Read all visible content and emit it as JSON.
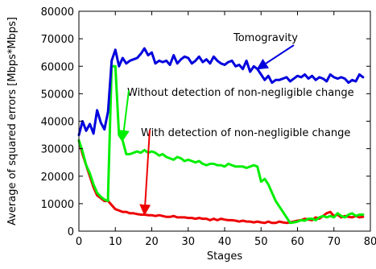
{
  "chart_data": {
    "type": "line",
    "xlabel": "Stages",
    "ylabel": "Average of squared errors [Mbps*Mbps]",
    "xlim": [
      0,
      80
    ],
    "ylim": [
      0,
      80000
    ],
    "xticks": [
      0,
      10,
      20,
      30,
      40,
      50,
      60,
      70,
      80
    ],
    "yticks": [
      0,
      10000,
      20000,
      30000,
      40000,
      50000,
      60000,
      70000,
      80000
    ],
    "grid": false,
    "legend": "none",
    "annotations": [
      {
        "text": "Tomogravity",
        "series": "tomogravity",
        "arrow_to": [
          49,
          59000
        ]
      },
      {
        "text": "Without detection of non-negligible change",
        "series": "without",
        "arrow_to": [
          12,
          33000
        ]
      },
      {
        "text": "With detection of non-negligible change",
        "series": "with",
        "arrow_to": [
          18,
          6000
        ]
      }
    ],
    "series": [
      {
        "key": "tomogravity",
        "color": "#0000dd",
        "x": [
          0,
          1,
          2,
          3,
          4,
          5,
          6,
          7,
          8,
          9,
          10,
          11,
          12,
          13,
          14,
          15,
          16,
          17,
          18,
          19,
          20,
          21,
          22,
          23,
          24,
          25,
          26,
          27,
          28,
          29,
          30,
          31,
          32,
          33,
          34,
          35,
          36,
          37,
          38,
          39,
          40,
          41,
          42,
          43,
          44,
          45,
          46,
          47,
          48,
          49,
          50,
          51,
          52,
          53,
          54,
          55,
          56,
          57,
          58,
          59,
          60,
          61,
          62,
          63,
          64,
          65,
          66,
          67,
          68,
          69,
          70,
          71,
          72,
          73,
          74,
          75,
          76,
          77,
          78
        ],
        "values": [
          35000,
          40000,
          36500,
          39000,
          35500,
          44000,
          39500,
          37000,
          43500,
          62000,
          66000,
          60000,
          63000,
          61000,
          62000,
          62500,
          63000,
          64500,
          66500,
          64000,
          65000,
          61000,
          62000,
          61500,
          62000,
          60500,
          64000,
          61000,
          62500,
          63500,
          63000,
          61000,
          62000,
          63500,
          61500,
          62500,
          61000,
          63500,
          62000,
          61000,
          60500,
          61500,
          62000,
          60000,
          60500,
          59000,
          62000,
          58000,
          60000,
          59000,
          57000,
          55000,
          56500,
          54000,
          55000,
          55000,
          55500,
          56000,
          54500,
          55500,
          56500,
          56000,
          57000,
          55500,
          56500,
          55000,
          56000,
          55500,
          54500,
          57000,
          56000,
          55500,
          56000,
          55500,
          54000,
          55000,
          54500,
          57000,
          56000
        ]
      },
      {
        "key": "without",
        "color": "#00ee00",
        "x": [
          0,
          1,
          2,
          3,
          4,
          5,
          6,
          7,
          8,
          8,
          9,
          10,
          11,
          12,
          13,
          14,
          15,
          16,
          17,
          18,
          19,
          20,
          21,
          22,
          23,
          24,
          25,
          26,
          27,
          28,
          29,
          30,
          31,
          32,
          33,
          34,
          35,
          36,
          37,
          38,
          39,
          40,
          41,
          42,
          43,
          44,
          45,
          46,
          47,
          48,
          49,
          50,
          51,
          52,
          53,
          54,
          55,
          56,
          57,
          58,
          59,
          60,
          61,
          62,
          63,
          64,
          65,
          66,
          67,
          68,
          69,
          70,
          71,
          72,
          73,
          74,
          75,
          76,
          77,
          78
        ],
        "values": [
          33000,
          29000,
          24000,
          21000,
          17000,
          14000,
          12500,
          11500,
          11000,
          13000,
          60000,
          60000,
          35000,
          33000,
          28000,
          28000,
          28500,
          29000,
          28500,
          29500,
          28500,
          29000,
          28500,
          27500,
          28000,
          27000,
          26500,
          26000,
          27000,
          26500,
          25500,
          26000,
          25500,
          25000,
          25500,
          24500,
          24000,
          24500,
          24500,
          24000,
          24000,
          23500,
          24500,
          24000,
          23500,
          23500,
          23500,
          23000,
          23500,
          24000,
          23500,
          18000,
          19000,
          17000,
          14000,
          11000,
          9000,
          7000,
          5000,
          3000,
          3200,
          3500,
          4000,
          3800,
          4500,
          4500,
          4000,
          5000,
          5500,
          5000,
          5500,
          5000,
          6500,
          5500,
          5000,
          6000,
          6500,
          5500,
          6000,
          6000
        ]
      },
      {
        "key": "with",
        "color": "#ee0000",
        "x": [
          0,
          1,
          2,
          3,
          4,
          5,
          6,
          7,
          8,
          9,
          10,
          11,
          12,
          13,
          14,
          15,
          16,
          17,
          18,
          19,
          20,
          21,
          22,
          23,
          24,
          25,
          26,
          27,
          28,
          29,
          30,
          31,
          32,
          33,
          34,
          35,
          36,
          37,
          38,
          39,
          40,
          41,
          42,
          43,
          44,
          45,
          46,
          47,
          48,
          49,
          50,
          51,
          52,
          53,
          54,
          55,
          56,
          57,
          58,
          59,
          60,
          61,
          62,
          63,
          64,
          65,
          66,
          67,
          68,
          69,
          70,
          71,
          72,
          73,
          74,
          75,
          76,
          77,
          78
        ],
        "values": [
          33000,
          28000,
          24000,
          20000,
          16000,
          13000,
          12000,
          11000,
          11000,
          9500,
          8000,
          7500,
          7000,
          7000,
          6500,
          6500,
          6200,
          6000,
          6000,
          5800,
          5800,
          5500,
          5800,
          5500,
          5200,
          5200,
          5500,
          5000,
          5000,
          5000,
          4800,
          4800,
          4500,
          4800,
          4500,
          4500,
          4000,
          4500,
          4000,
          4500,
          4200,
          4000,
          4000,
          3800,
          3500,
          3800,
          3500,
          3500,
          3200,
          3500,
          3200,
          3000,
          3500,
          3000,
          3000,
          3500,
          3200,
          3000,
          3200,
          3500,
          3800,
          4000,
          4500,
          4200,
          4000,
          5000,
          4500,
          5500,
          6500,
          7000,
          5500,
          6000,
          5000,
          5500,
          5200,
          5000,
          5500,
          5000,
          5200
        ]
      }
    ]
  }
}
